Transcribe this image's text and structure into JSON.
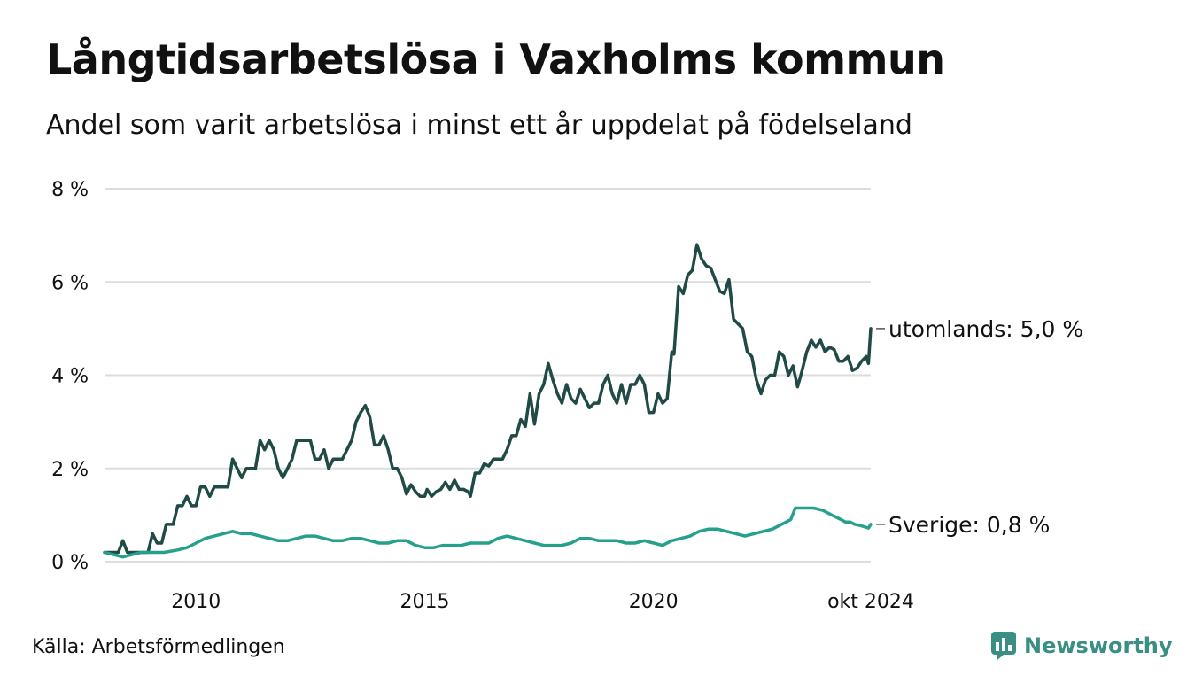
{
  "title": "Långtidsarbetslösa i Vaxholms kommun",
  "subtitle": "Andel som varit arbetslösa i minst ett år uppdelat på födelseland",
  "source": "Källa: Arbetsförmedlingen",
  "brand": "Newsworthy",
  "colors": {
    "utomlands": "#1f4a45",
    "sverige": "#25a08c",
    "grid": "#dddddd",
    "brand": "#3a8f84"
  },
  "chart_data": {
    "type": "line",
    "title": "Långtidsarbetslösa i Vaxholms kommun",
    "xlabel": "",
    "ylabel": "",
    "xlim": [
      2008.0,
      2024.75
    ],
    "ylim": [
      0,
      8
    ],
    "yticks": [
      0,
      2,
      4,
      6,
      8
    ],
    "ytick_labels": [
      "0 %",
      "2 %",
      "4 %",
      "6 %",
      "8 %"
    ],
    "xticks": [
      2010,
      2015,
      2020,
      2024.75
    ],
    "xtick_labels": [
      "2010",
      "2015",
      "2020",
      "okt 2024"
    ],
    "grid": true,
    "series": [
      {
        "name": "utomlands",
        "end_label": "utomlands: 5,0 %",
        "points": [
          [
            2008.0,
            0.2
          ],
          [
            2008.3,
            0.2
          ],
          [
            2008.4,
            0.45
          ],
          [
            2008.5,
            0.2
          ],
          [
            2008.8,
            0.2
          ],
          [
            2008.95,
            0.2
          ],
          [
            2009.05,
            0.6
          ],
          [
            2009.15,
            0.4
          ],
          [
            2009.25,
            0.4
          ],
          [
            2009.35,
            0.8
          ],
          [
            2009.5,
            0.8
          ],
          [
            2009.6,
            1.2
          ],
          [
            2009.7,
            1.2
          ],
          [
            2009.8,
            1.4
          ],
          [
            2009.9,
            1.2
          ],
          [
            2010.0,
            1.2
          ],
          [
            2010.1,
            1.6
          ],
          [
            2010.2,
            1.6
          ],
          [
            2010.3,
            1.4
          ],
          [
            2010.4,
            1.6
          ],
          [
            2010.5,
            1.6
          ],
          [
            2010.6,
            1.6
          ],
          [
            2010.7,
            1.6
          ],
          [
            2010.8,
            2.2
          ],
          [
            2010.9,
            2.0
          ],
          [
            2011.0,
            1.8
          ],
          [
            2011.1,
            2.0
          ],
          [
            2011.2,
            2.0
          ],
          [
            2011.3,
            2.0
          ],
          [
            2011.4,
            2.6
          ],
          [
            2011.5,
            2.4
          ],
          [
            2011.6,
            2.6
          ],
          [
            2011.7,
            2.4
          ],
          [
            2011.8,
            2.0
          ],
          [
            2011.9,
            1.8
          ],
          [
            2012.0,
            2.0
          ],
          [
            2012.1,
            2.2
          ],
          [
            2012.2,
            2.6
          ],
          [
            2012.3,
            2.6
          ],
          [
            2012.5,
            2.6
          ],
          [
            2012.6,
            2.2
          ],
          [
            2012.7,
            2.2
          ],
          [
            2012.8,
            2.4
          ],
          [
            2012.9,
            2.0
          ],
          [
            2013.0,
            2.2
          ],
          [
            2013.1,
            2.2
          ],
          [
            2013.2,
            2.2
          ],
          [
            2013.4,
            2.6
          ],
          [
            2013.5,
            3.0
          ],
          [
            2013.6,
            3.2
          ],
          [
            2013.7,
            3.35
          ],
          [
            2013.8,
            3.1
          ],
          [
            2013.9,
            2.5
          ],
          [
            2014.0,
            2.5
          ],
          [
            2014.1,
            2.7
          ],
          [
            2014.2,
            2.4
          ],
          [
            2014.3,
            2.0
          ],
          [
            2014.4,
            2.0
          ],
          [
            2014.5,
            1.8
          ],
          [
            2014.6,
            1.45
          ],
          [
            2014.7,
            1.65
          ],
          [
            2014.8,
            1.5
          ],
          [
            2014.9,
            1.4
          ],
          [
            2015.0,
            1.4
          ],
          [
            2015.05,
            1.55
          ],
          [
            2015.15,
            1.4
          ],
          [
            2015.25,
            1.5
          ],
          [
            2015.35,
            1.55
          ],
          [
            2015.45,
            1.7
          ],
          [
            2015.55,
            1.55
          ],
          [
            2015.65,
            1.75
          ],
          [
            2015.75,
            1.55
          ],
          [
            2015.85,
            1.55
          ],
          [
            2015.95,
            1.5
          ],
          [
            2016.0,
            1.4
          ],
          [
            2016.1,
            1.9
          ],
          [
            2016.2,
            1.9
          ],
          [
            2016.3,
            2.1
          ],
          [
            2016.4,
            2.05
          ],
          [
            2016.5,
            2.2
          ],
          [
            2016.6,
            2.2
          ],
          [
            2016.7,
            2.2
          ],
          [
            2016.8,
            2.4
          ],
          [
            2016.9,
            2.7
          ],
          [
            2017.0,
            2.7
          ],
          [
            2017.1,
            3.05
          ],
          [
            2017.2,
            2.9
          ],
          [
            2017.3,
            3.6
          ],
          [
            2017.4,
            2.95
          ],
          [
            2017.5,
            3.6
          ],
          [
            2017.6,
            3.8
          ],
          [
            2017.7,
            4.25
          ],
          [
            2017.8,
            3.9
          ],
          [
            2017.9,
            3.6
          ],
          [
            2018.0,
            3.4
          ],
          [
            2018.1,
            3.8
          ],
          [
            2018.2,
            3.5
          ],
          [
            2018.3,
            3.4
          ],
          [
            2018.4,
            3.7
          ],
          [
            2018.5,
            3.5
          ],
          [
            2018.6,
            3.3
          ],
          [
            2018.7,
            3.4
          ],
          [
            2018.8,
            3.4
          ],
          [
            2018.9,
            3.8
          ],
          [
            2019.0,
            4.0
          ],
          [
            2019.1,
            3.6
          ],
          [
            2019.2,
            3.4
          ],
          [
            2019.3,
            3.8
          ],
          [
            2019.4,
            3.4
          ],
          [
            2019.5,
            3.8
          ],
          [
            2019.6,
            3.8
          ],
          [
            2019.7,
            4.0
          ],
          [
            2019.8,
            3.8
          ],
          [
            2019.9,
            3.2
          ],
          [
            2020.0,
            3.2
          ],
          [
            2020.1,
            3.6
          ],
          [
            2020.2,
            3.4
          ],
          [
            2020.3,
            3.5
          ],
          [
            2020.4,
            4.5
          ],
          [
            2020.45,
            4.45
          ],
          [
            2020.55,
            5.9
          ],
          [
            2020.65,
            5.75
          ],
          [
            2020.75,
            6.15
          ],
          [
            2020.85,
            6.25
          ],
          [
            2020.95,
            6.8
          ],
          [
            2021.05,
            6.5
          ],
          [
            2021.15,
            6.35
          ],
          [
            2021.25,
            6.3
          ],
          [
            2021.35,
            6.05
          ],
          [
            2021.45,
            5.8
          ],
          [
            2021.55,
            5.75
          ],
          [
            2021.65,
            6.05
          ],
          [
            2021.75,
            5.2
          ],
          [
            2021.85,
            5.1
          ],
          [
            2021.95,
            5.0
          ],
          [
            2022.05,
            4.5
          ],
          [
            2022.15,
            4.4
          ],
          [
            2022.25,
            3.9
          ],
          [
            2022.35,
            3.6
          ],
          [
            2022.45,
            3.9
          ],
          [
            2022.55,
            4.0
          ],
          [
            2022.65,
            4.0
          ],
          [
            2022.75,
            4.5
          ],
          [
            2022.85,
            4.4
          ],
          [
            2022.95,
            4.0
          ],
          [
            2023.05,
            4.2
          ],
          [
            2023.15,
            3.75
          ],
          [
            2023.25,
            4.1
          ],
          [
            2023.35,
            4.5
          ],
          [
            2023.45,
            4.75
          ],
          [
            2023.55,
            4.6
          ],
          [
            2023.65,
            4.75
          ],
          [
            2023.75,
            4.5
          ],
          [
            2023.85,
            4.6
          ],
          [
            2023.95,
            4.55
          ],
          [
            2024.05,
            4.3
          ],
          [
            2024.15,
            4.3
          ],
          [
            2024.25,
            4.4
          ],
          [
            2024.35,
            4.1
          ],
          [
            2024.45,
            4.15
          ],
          [
            2024.55,
            4.3
          ],
          [
            2024.65,
            4.4
          ],
          [
            2024.7,
            4.25
          ],
          [
            2024.75,
            5.0
          ]
        ]
      },
      {
        "name": "Sverige",
        "end_label": "Sverige: 0,8 %",
        "points": [
          [
            2008.0,
            0.2
          ],
          [
            2008.2,
            0.15
          ],
          [
            2008.4,
            0.1
          ],
          [
            2008.6,
            0.15
          ],
          [
            2008.8,
            0.2
          ],
          [
            2009.0,
            0.2
          ],
          [
            2009.3,
            0.2
          ],
          [
            2009.6,
            0.25
          ],
          [
            2009.8,
            0.3
          ],
          [
            2010.0,
            0.4
          ],
          [
            2010.2,
            0.5
          ],
          [
            2010.4,
            0.55
          ],
          [
            2010.6,
            0.6
          ],
          [
            2010.8,
            0.65
          ],
          [
            2011.0,
            0.6
          ],
          [
            2011.2,
            0.6
          ],
          [
            2011.4,
            0.55
          ],
          [
            2011.6,
            0.5
          ],
          [
            2011.8,
            0.45
          ],
          [
            2012.0,
            0.45
          ],
          [
            2012.2,
            0.5
          ],
          [
            2012.4,
            0.55
          ],
          [
            2012.6,
            0.55
          ],
          [
            2012.8,
            0.5
          ],
          [
            2013.0,
            0.45
          ],
          [
            2013.2,
            0.45
          ],
          [
            2013.4,
            0.5
          ],
          [
            2013.6,
            0.5
          ],
          [
            2013.8,
            0.45
          ],
          [
            2014.0,
            0.4
          ],
          [
            2014.2,
            0.4
          ],
          [
            2014.4,
            0.45
          ],
          [
            2014.6,
            0.45
          ],
          [
            2014.8,
            0.35
          ],
          [
            2015.0,
            0.3
          ],
          [
            2015.2,
            0.3
          ],
          [
            2015.4,
            0.35
          ],
          [
            2015.6,
            0.35
          ],
          [
            2015.8,
            0.35
          ],
          [
            2016.0,
            0.4
          ],
          [
            2016.2,
            0.4
          ],
          [
            2016.4,
            0.4
          ],
          [
            2016.6,
            0.5
          ],
          [
            2016.8,
            0.55
          ],
          [
            2017.0,
            0.5
          ],
          [
            2017.2,
            0.45
          ],
          [
            2017.4,
            0.4
          ],
          [
            2017.6,
            0.35
          ],
          [
            2017.8,
            0.35
          ],
          [
            2018.0,
            0.35
          ],
          [
            2018.2,
            0.4
          ],
          [
            2018.4,
            0.5
          ],
          [
            2018.6,
            0.5
          ],
          [
            2018.8,
            0.45
          ],
          [
            2019.0,
            0.45
          ],
          [
            2019.2,
            0.45
          ],
          [
            2019.4,
            0.4
          ],
          [
            2019.6,
            0.4
          ],
          [
            2019.8,
            0.45
          ],
          [
            2020.0,
            0.4
          ],
          [
            2020.2,
            0.35
          ],
          [
            2020.4,
            0.45
          ],
          [
            2020.6,
            0.5
          ],
          [
            2020.8,
            0.55
          ],
          [
            2021.0,
            0.65
          ],
          [
            2021.2,
            0.7
          ],
          [
            2021.4,
            0.7
          ],
          [
            2021.6,
            0.65
          ],
          [
            2021.8,
            0.6
          ],
          [
            2022.0,
            0.55
          ],
          [
            2022.2,
            0.6
          ],
          [
            2022.4,
            0.65
          ],
          [
            2022.6,
            0.7
          ],
          [
            2022.8,
            0.8
          ],
          [
            2023.0,
            0.9
          ],
          [
            2023.1,
            1.15
          ],
          [
            2023.3,
            1.15
          ],
          [
            2023.5,
            1.15
          ],
          [
            2023.7,
            1.1
          ],
          [
            2023.9,
            1.0
          ],
          [
            2024.0,
            0.95
          ],
          [
            2024.1,
            0.9
          ],
          [
            2024.2,
            0.85
          ],
          [
            2024.3,
            0.85
          ],
          [
            2024.4,
            0.8
          ],
          [
            2024.5,
            0.78
          ],
          [
            2024.6,
            0.75
          ],
          [
            2024.7,
            0.72
          ],
          [
            2024.75,
            0.8
          ]
        ]
      }
    ]
  }
}
